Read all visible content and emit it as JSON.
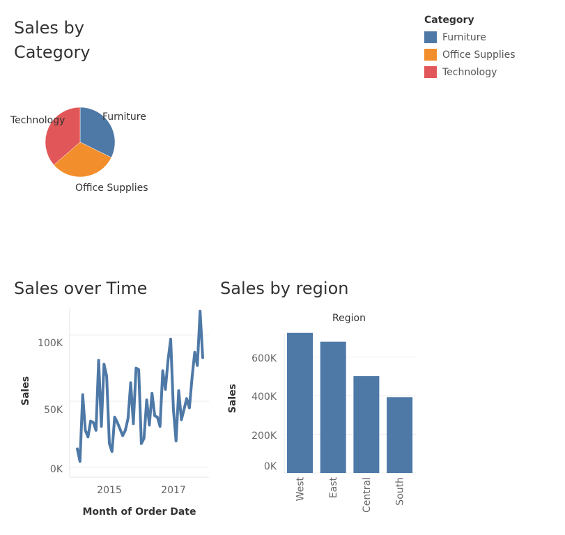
{
  "colors": {
    "furniture": "#4e79a7",
    "office_supplies": "#f28e2b",
    "technology": "#e15759",
    "bar": "#4e79a7",
    "line": "#4e79a7"
  },
  "titles": {
    "category_line1": "Sales by",
    "category_line2": "Category",
    "time": "Sales over Time",
    "region": "Sales by region"
  },
  "legend": {
    "title": "Category",
    "items": [
      {
        "label": "Furniture",
        "color": "#4e79a7"
      },
      {
        "label": "Office Supplies",
        "color": "#f28e2b"
      },
      {
        "label": "Technology",
        "color": "#e15759"
      }
    ]
  },
  "chart_data": [
    {
      "type": "pie",
      "title": "Sales by Category",
      "categories": [
        "Furniture",
        "Office Supplies",
        "Technology"
      ],
      "values": [
        742000,
        719000,
        836000
      ],
      "colors": [
        "#4e79a7",
        "#f28e2b",
        "#e15759"
      ],
      "legend": "top-right"
    },
    {
      "type": "line",
      "title": "Sales over Time",
      "xlabel": "Month of Order Date",
      "ylabel": "Sales",
      "x_ticks": [
        "2015",
        "2017"
      ],
      "y_ticks": [
        "0K",
        "50K",
        "100K"
      ],
      "ylim": [
        0,
        125000
      ],
      "grid": true,
      "series": [
        {
          "x": [
            "2014-01",
            "2014-02",
            "2014-03",
            "2014-04",
            "2014-05",
            "2014-06",
            "2014-07",
            "2014-08",
            "2014-09",
            "2014-10",
            "2014-11",
            "2014-12",
            "2015-01",
            "2015-02",
            "2015-03",
            "2015-04",
            "2015-05",
            "2015-06",
            "2015-07",
            "2015-08",
            "2015-09",
            "2015-10",
            "2015-11",
            "2015-12",
            "2016-01",
            "2016-02",
            "2016-03",
            "2016-04",
            "2016-05",
            "2016-06",
            "2016-07",
            "2016-08",
            "2016-09",
            "2016-10",
            "2016-11",
            "2016-12",
            "2017-01",
            "2017-02",
            "2017-03",
            "2017-04",
            "2017-05",
            "2017-06",
            "2017-07",
            "2017-08",
            "2017-09",
            "2017-10",
            "2017-11",
            "2017-12"
          ],
          "values": [
            14000,
            4500,
            55000,
            28000,
            23000,
            35000,
            34000,
            28000,
            81000,
            31000,
            78000,
            69000,
            18000,
            12000,
            38000,
            34000,
            29000,
            24000,
            28000,
            37000,
            64000,
            33000,
            75000,
            74000,
            18000,
            22000,
            51000,
            32000,
            56000,
            39000,
            38000,
            31000,
            73000,
            59000,
            81000,
            97000,
            44000,
            20000,
            58000,
            36000,
            44000,
            52000,
            45000,
            68000,
            87000,
            77000,
            118000,
            83000
          ]
        }
      ]
    },
    {
      "type": "bar",
      "title": "Sales by region",
      "header": "Region",
      "categories": [
        "West",
        "East",
        "Central",
        "South"
      ],
      "values": [
        725000,
        679000,
        501000,
        392000
      ],
      "ylabel": "Sales",
      "y_ticks": [
        "0K",
        "200K",
        "400K",
        "600K"
      ],
      "ylim": [
        0,
        750000
      ],
      "grid": true
    }
  ]
}
